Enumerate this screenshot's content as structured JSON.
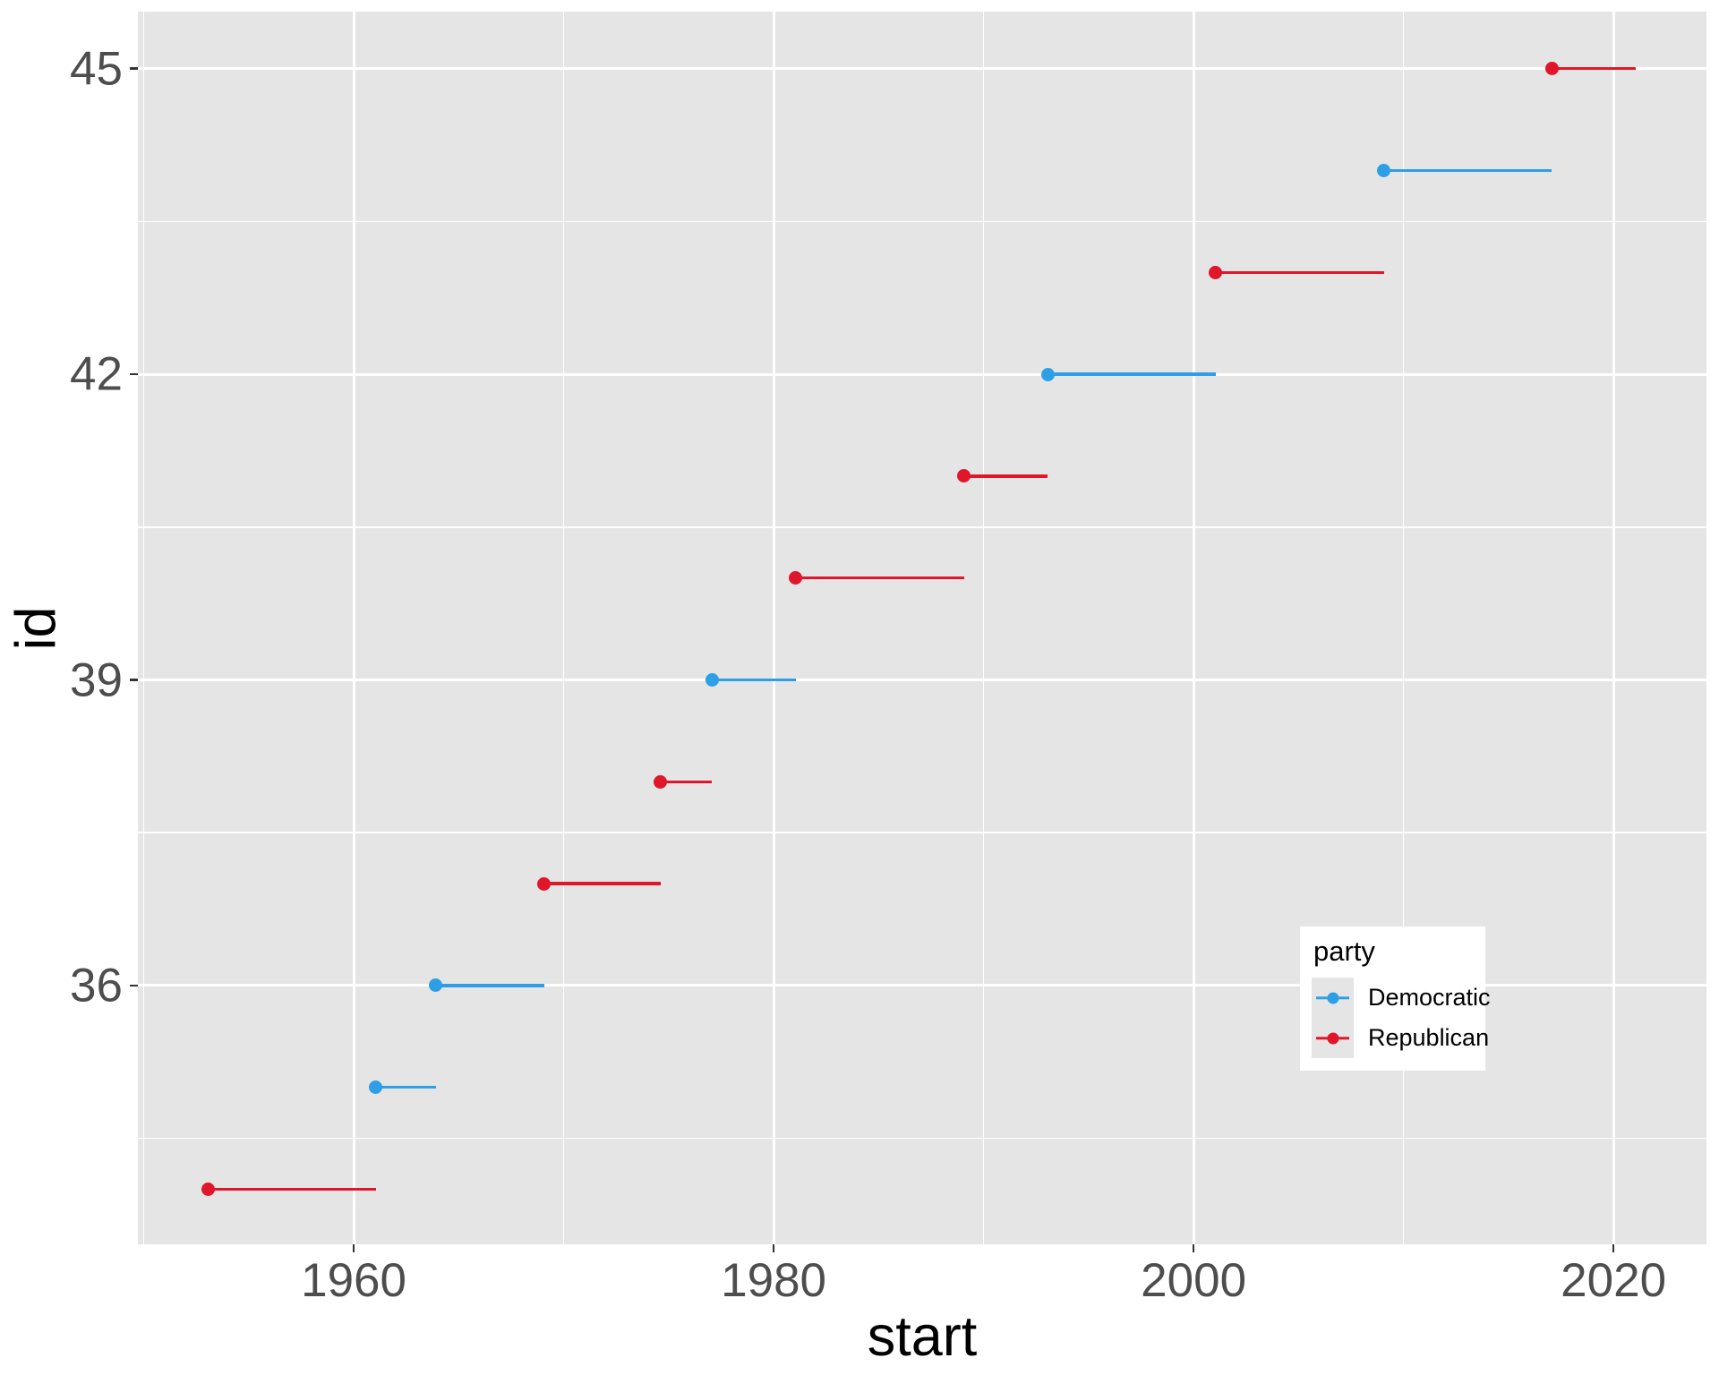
{
  "chart_data": {
    "type": "segment",
    "title": "",
    "xlabel": "start",
    "ylabel": "id",
    "xlim": [
      1949.72,
      2024.43
    ],
    "ylim": [
      33.46,
      45.56
    ],
    "x_major_ticks": [
      1960,
      1980,
      2000,
      2020
    ],
    "x_minor_gridlines": [
      1950,
      1970,
      1990,
      2010
    ],
    "y_major_ticks": [
      36,
      39,
      42,
      45
    ],
    "y_minor_gridlines": [
      34.5,
      37.5,
      40.5,
      43.5
    ],
    "grid": "white major+minor on gray panel",
    "legend": {
      "title": "party",
      "position": "inside lower-right",
      "entries": [
        {
          "label": "Democratic",
          "color": "#2E9FE6"
        },
        {
          "label": "Republican",
          "color": "#E0162B"
        }
      ]
    },
    "series": [
      {
        "id": 34,
        "party": "Republican",
        "start": 1953.08,
        "end": 1961.06
      },
      {
        "id": 35,
        "party": "Democratic",
        "start": 1961.06,
        "end": 1963.9
      },
      {
        "id": 36,
        "party": "Democratic",
        "start": 1963.9,
        "end": 1969.06
      },
      {
        "id": 37,
        "party": "Republican",
        "start": 1969.06,
        "end": 1974.61
      },
      {
        "id": 38,
        "party": "Republican",
        "start": 1974.61,
        "end": 1977.06
      },
      {
        "id": 39,
        "party": "Democratic",
        "start": 1977.06,
        "end": 1981.06
      },
      {
        "id": 40,
        "party": "Republican",
        "start": 1981.06,
        "end": 1989.06
      },
      {
        "id": 41,
        "party": "Republican",
        "start": 1989.06,
        "end": 1993.06
      },
      {
        "id": 42,
        "party": "Democratic",
        "start": 1993.06,
        "end": 2001.06
      },
      {
        "id": 43,
        "party": "Republican",
        "start": 2001.06,
        "end": 2009.06
      },
      {
        "id": 44,
        "party": "Democratic",
        "start": 2009.06,
        "end": 2017.06
      },
      {
        "id": 45,
        "party": "Republican",
        "start": 2017.06,
        "end": 2021.06
      }
    ]
  },
  "style": {
    "panel_bg": "#E5E5E5",
    "grid_color": "#FFFFFF",
    "tick_color": "#333333",
    "tick_label_color": "#4D4D4D",
    "axis_title_color": "#000000",
    "legend_bg": "#FFFFFF",
    "legend_key_bg": "#E5E5E5"
  }
}
